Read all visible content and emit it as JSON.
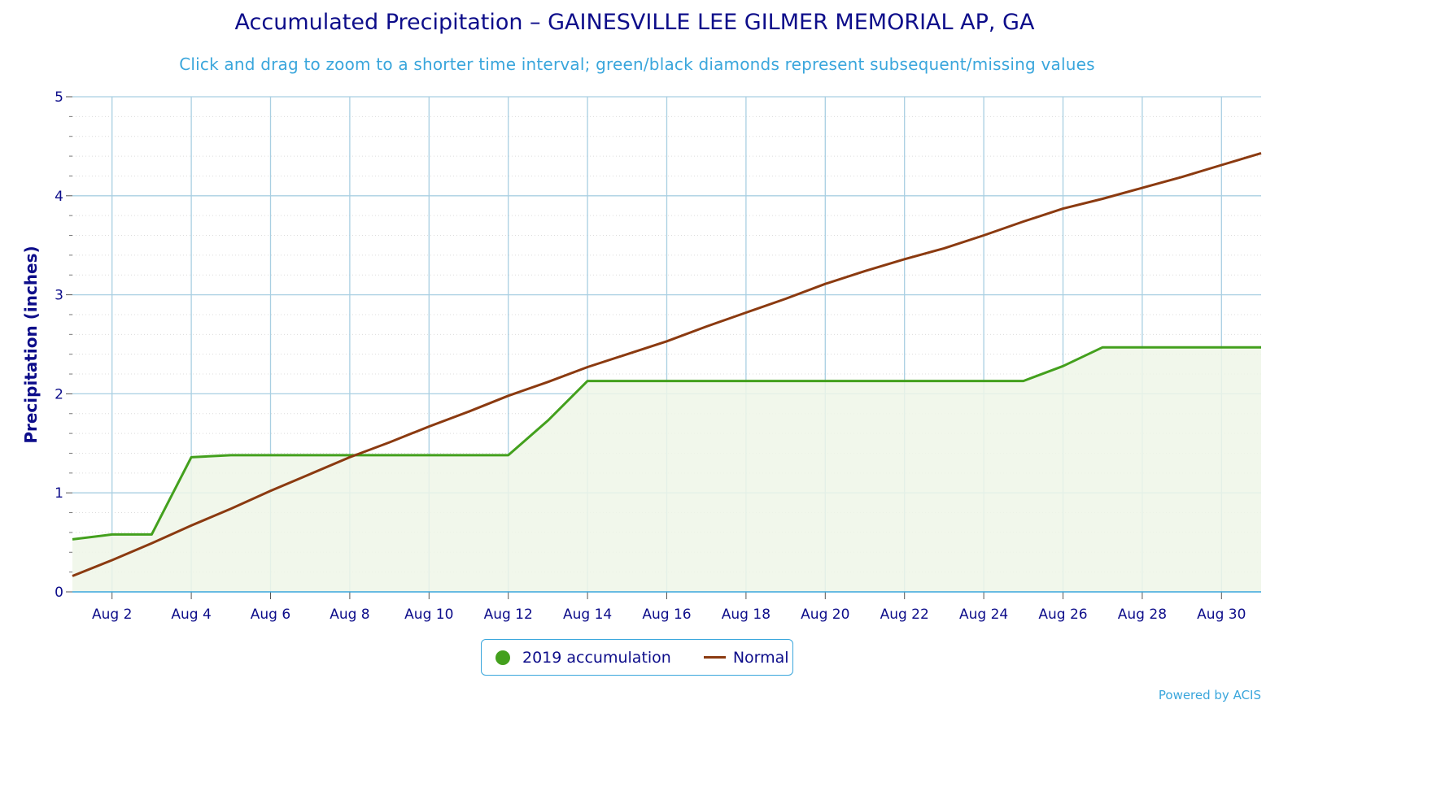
{
  "chart_data": {
    "type": "area",
    "title": "Accumulated Precipitation – GAINESVILLE LEE GILMER MEMORIAL AP, GA",
    "subtitle": "Click and drag to zoom to a shorter time interval; green/black diamonds represent subsequent/missing values",
    "ylabel": "Precipitation (inches)",
    "xlabel": "",
    "ylim": [
      0,
      5
    ],
    "xlim": [
      1,
      31
    ],
    "yticks": [
      0,
      1,
      2,
      3,
      4,
      5
    ],
    "xticks": [
      2,
      4,
      6,
      8,
      10,
      12,
      14,
      16,
      18,
      20,
      22,
      24,
      26,
      28,
      30
    ],
    "xtick_labels": [
      "Aug 2",
      "Aug 4",
      "Aug 6",
      "Aug 8",
      "Aug 10",
      "Aug 12",
      "Aug 14",
      "Aug 16",
      "Aug 18",
      "Aug 20",
      "Aug 22",
      "Aug 24",
      "Aug 26",
      "Aug 28",
      "Aug 30"
    ],
    "grid": true,
    "legend": "bottom-center",
    "x": [
      1,
      2,
      3,
      4,
      5,
      6,
      7,
      8,
      9,
      10,
      11,
      12,
      13,
      14,
      15,
      16,
      17,
      18,
      19,
      20,
      21,
      22,
      23,
      24,
      25,
      26,
      27,
      28,
      29,
      30,
      31
    ],
    "series": [
      {
        "name": "2019 accumulation",
        "kind": "area",
        "color": "#43a01d",
        "fill": "#eef6e8",
        "values": [
          0.53,
          0.58,
          0.58,
          1.36,
          1.38,
          1.38,
          1.38,
          1.38,
          1.38,
          1.38,
          1.38,
          1.38,
          1.73,
          2.13,
          2.13,
          2.13,
          2.13,
          2.13,
          2.13,
          2.13,
          2.13,
          2.13,
          2.13,
          2.13,
          2.13,
          2.28,
          2.47,
          2.47,
          2.47,
          2.47,
          2.47
        ]
      },
      {
        "name": "Normal",
        "kind": "line",
        "color": "#8b3a10",
        "values": [
          0.16,
          0.32,
          0.49,
          0.67,
          0.84,
          1.02,
          1.19,
          1.36,
          1.51,
          1.67,
          1.82,
          1.98,
          2.12,
          2.27,
          2.4,
          2.53,
          2.68,
          2.82,
          2.96,
          3.11,
          3.24,
          3.36,
          3.47,
          3.6,
          3.74,
          3.87,
          3.97,
          4.08,
          4.19,
          4.31,
          4.43
        ]
      }
    ]
  },
  "credit": "Powered by ACIS"
}
